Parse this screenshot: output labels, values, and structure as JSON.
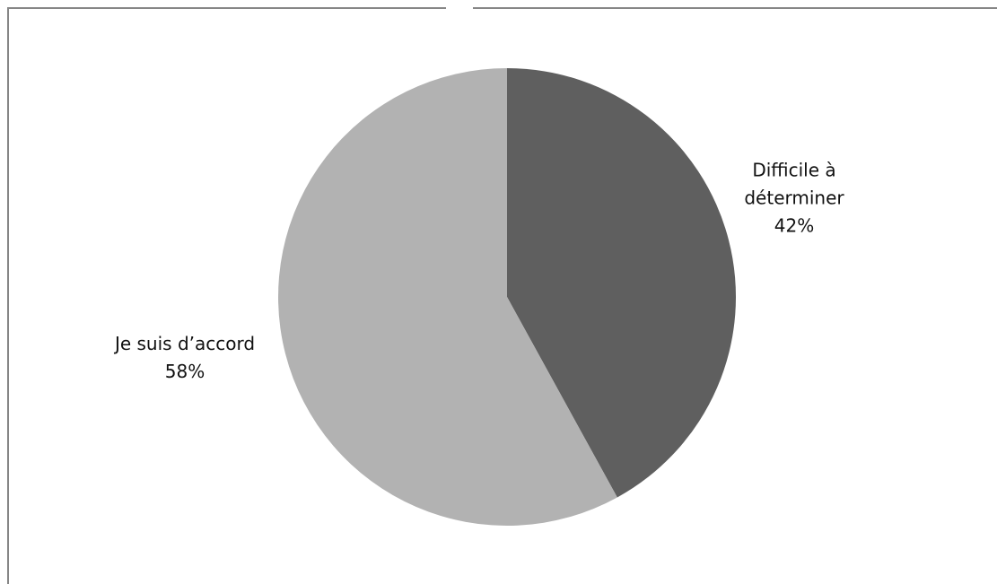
{
  "chart_data": {
    "type": "pie",
    "title": "",
    "start_angle_deg": 0,
    "direction": "clockwise",
    "slices": [
      {
        "label_lines": [
          "Difficile à",
          "déterminer"
        ],
        "percent_label": "42%",
        "value": 42,
        "color": "#5f5f5f"
      },
      {
        "label_lines": [
          "Je suis d’accord"
        ],
        "percent_label": "58%",
        "value": 58,
        "color": "#b2b2b2"
      }
    ]
  }
}
